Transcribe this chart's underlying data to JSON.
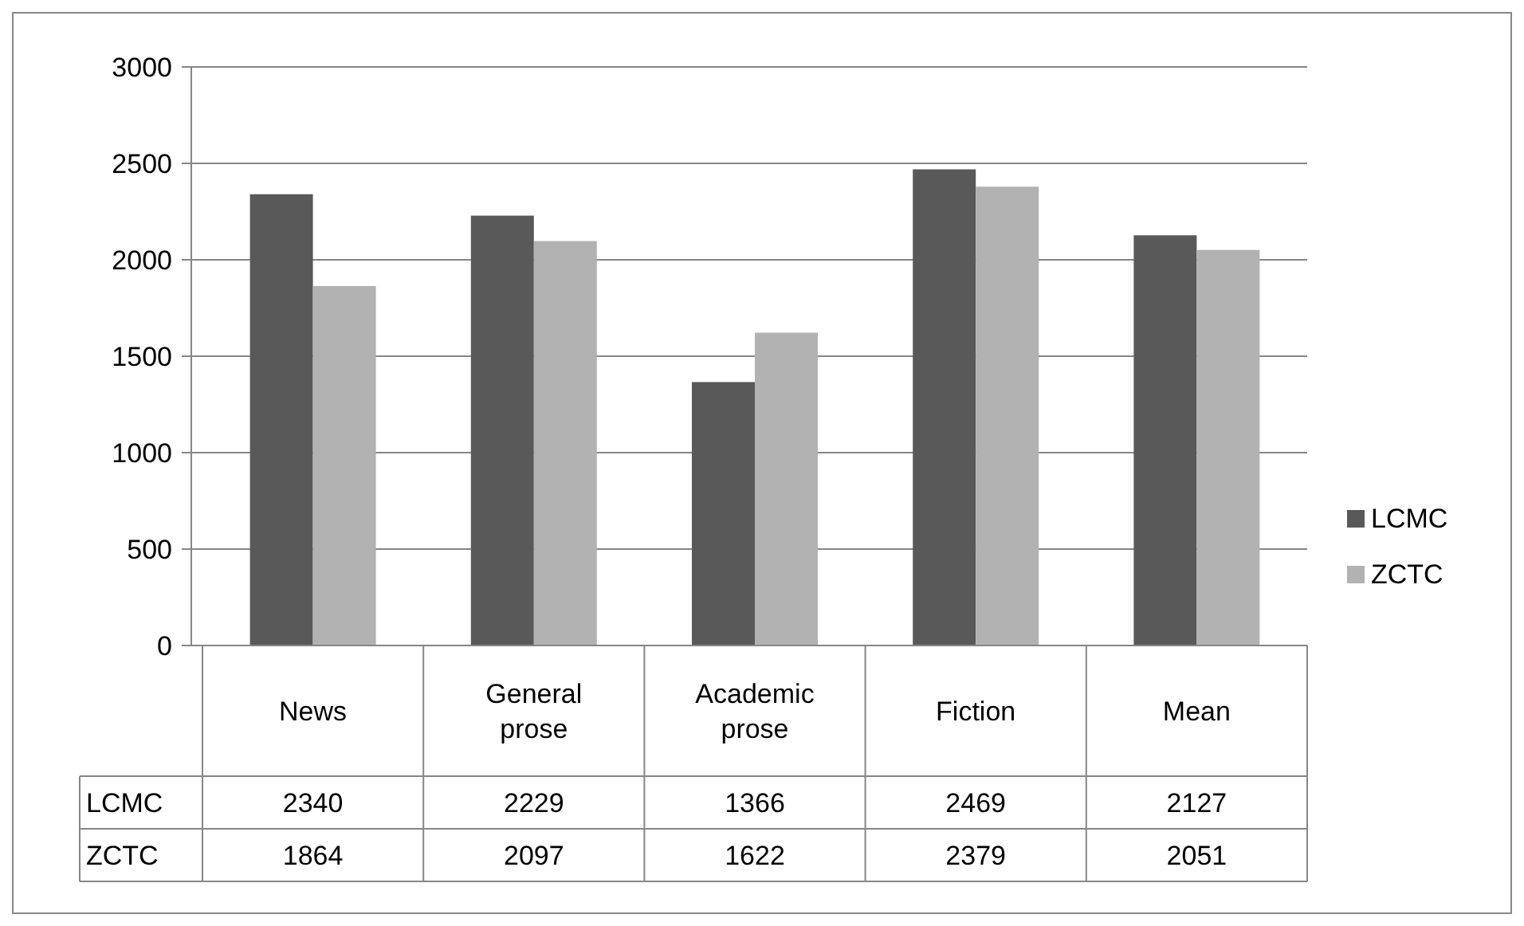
{
  "chart_data": {
    "type": "bar",
    "categories": [
      "News",
      "General prose",
      "Academic prose",
      "Fiction",
      "Mean"
    ],
    "series": [
      {
        "name": "LCMC",
        "color": "#595959",
        "values": [
          2340,
          2229,
          1366,
          2469,
          2127
        ]
      },
      {
        "name": "ZCTC",
        "color": "#b2b2b2",
        "values": [
          1864,
          2097,
          1622,
          2379,
          2051
        ]
      }
    ],
    "ylim": [
      0,
      3000
    ],
    "yticks": [
      0,
      500,
      1000,
      1500,
      2000,
      2500,
      3000
    ],
    "grid": "y",
    "legend": "right",
    "data_labels": true
  }
}
